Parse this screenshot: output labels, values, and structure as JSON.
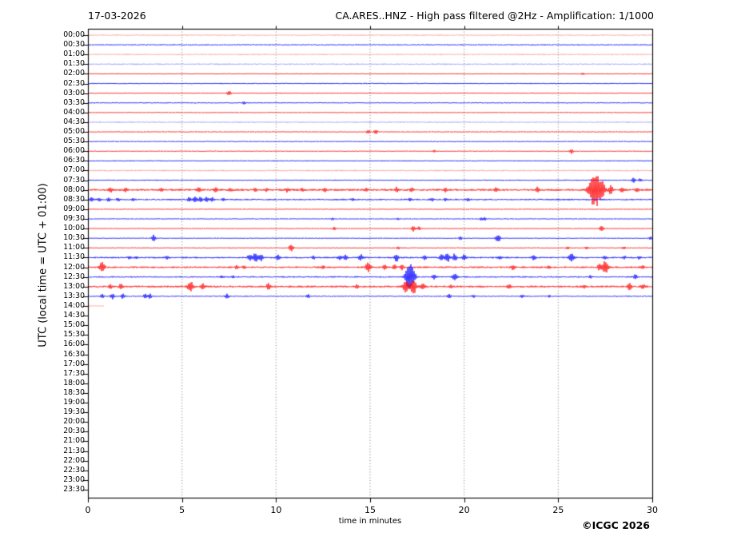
{
  "header": {
    "date": "17-03-2026",
    "title": "CA.ARES..HNZ - High pass filtered @2Hz - Amplification: 1/1000"
  },
  "axes": {
    "y_label": "UTC (local time = UTC + 01:00)",
    "x_label": "time in minutes",
    "x_tick_labels": [
      "0",
      "5",
      "10",
      "15",
      "20",
      "25",
      "30"
    ],
    "grid_minutes": [
      5,
      10,
      15,
      20,
      25
    ]
  },
  "footer": {
    "copyright": "©ICGC 2026"
  },
  "colors": {
    "red": "#ff0000",
    "blue": "#0000ff",
    "pale_red": "#ff9898",
    "pale_blue": "#9898ff",
    "grid": "#666666",
    "frame": "#000000"
  },
  "chart_data": {
    "type": "line",
    "subtype": "helicorder-seismogram",
    "title": "CA.ARES..HNZ - High pass filtered @2Hz - Amplification: 1/1000",
    "date": "17-03-2026",
    "xlabel": "time in minutes",
    "ylabel": "UTC (local time = UTC + 01:00)",
    "x_range_minutes": [
      0,
      30
    ],
    "x_ticks": [
      0,
      5,
      10,
      15,
      20,
      25,
      30
    ],
    "minutes_per_line": 30,
    "grid": "dotted vertical lines at 5,10,15,20,25 minutes",
    "legend": "red = lines starting on the hour, blue = lines starting on the half hour",
    "rows": [
      "00:00",
      "00:30",
      "01:00",
      "01:30",
      "02:00",
      "02:30",
      "03:00",
      "03:30",
      "04:00",
      "04:30",
      "05:00",
      "05:30",
      "06:00",
      "06:30",
      "07:00",
      "07:30",
      "08:00",
      "08:30",
      "09:00",
      "09:30",
      "10:00",
      "10:30",
      "11:00",
      "11:30",
      "12:00",
      "12:30",
      "13:00",
      "13:30",
      "14:00",
      "14:30",
      "15:00",
      "15:30",
      "16:00",
      "16:30",
      "17:00",
      "17:30",
      "18:00",
      "18:30",
      "19:00",
      "19:30",
      "20:00",
      "20:30",
      "21:00",
      "21:30",
      "22:00",
      "22:30",
      "23:00",
      "23:30"
    ],
    "last_data_row": "14:00",
    "empty_rows_after": "14:30-23:30",
    "traces": [
      {
        "row": "00:00",
        "color": "red",
        "shade": "pale",
        "noise": 0.9,
        "events": []
      },
      {
        "row": "00:30",
        "color": "blue",
        "shade": "normal",
        "noise": 0.8,
        "events": []
      },
      {
        "row": "01:00",
        "color": "red",
        "shade": "pale",
        "noise": 0.9,
        "events": []
      },
      {
        "row": "01:30",
        "color": "blue",
        "shade": "pale",
        "noise": 0.9,
        "events": []
      },
      {
        "row": "02:00",
        "color": "red",
        "shade": "normal",
        "noise": 0.65,
        "events": [
          [
            26.3,
            1.2
          ]
        ]
      },
      {
        "row": "02:30",
        "color": "blue",
        "shade": "normal",
        "noise": 0.7,
        "events": []
      },
      {
        "row": "03:00",
        "color": "red",
        "shade": "normal",
        "noise": 0.65,
        "events": [
          [
            7.5,
            3
          ]
        ]
      },
      {
        "row": "03:30",
        "color": "blue",
        "shade": "normal",
        "noise": 0.7,
        "events": [
          [
            8.3,
            1.5
          ]
        ]
      },
      {
        "row": "04:00",
        "color": "red",
        "shade": "normal",
        "noise": 0.65,
        "events": []
      },
      {
        "row": "04:30",
        "color": "blue",
        "shade": "pale",
        "noise": 0.9,
        "events": []
      },
      {
        "row": "05:00",
        "color": "red",
        "shade": "normal",
        "noise": 0.7,
        "events": [
          [
            14.9,
            2.5
          ],
          [
            15.3,
            2.5
          ]
        ]
      },
      {
        "row": "05:30",
        "color": "blue",
        "shade": "normal",
        "noise": 0.7,
        "events": []
      },
      {
        "row": "06:00",
        "color": "red",
        "shade": "normal",
        "noise": 0.65,
        "events": [
          [
            18.4,
            1.5
          ],
          [
            25.7,
            2.5
          ]
        ]
      },
      {
        "row": "06:30",
        "color": "blue",
        "shade": "normal",
        "noise": 0.7,
        "events": []
      },
      {
        "row": "07:00",
        "color": "red",
        "shade": "pale",
        "noise": 0.9,
        "events": []
      },
      {
        "row": "07:30",
        "color": "blue",
        "shade": "normal",
        "noise": 0.7,
        "events": [
          [
            29.0,
            3
          ],
          [
            29.35,
            1.8
          ]
        ]
      },
      {
        "row": "08:00",
        "color": "red",
        "shade": "normal",
        "noise": 1.3,
        "events": [
          [
            1.2,
            2.5
          ],
          [
            2.0,
            2
          ],
          [
            3.9,
            2
          ],
          [
            5.9,
            2.5
          ],
          [
            6.8,
            2.5
          ],
          [
            7.6,
            2
          ],
          [
            8.9,
            2
          ],
          [
            9.5,
            2
          ],
          [
            10.6,
            2.5
          ],
          [
            11.4,
            2
          ],
          [
            12.6,
            2
          ],
          [
            14.8,
            2
          ],
          [
            16.4,
            3
          ],
          [
            17.2,
            2.5
          ],
          [
            19.0,
            2.5
          ],
          [
            21.7,
            2.5
          ],
          [
            23.9,
            3
          ],
          [
            26.95,
            24
          ],
          [
            27.35,
            8
          ],
          [
            27.8,
            5
          ],
          [
            28.4,
            3
          ],
          [
            29.2,
            2
          ]
        ]
      },
      {
        "row": "08:30",
        "color": "blue",
        "shade": "normal",
        "noise": 1.0,
        "events": [
          [
            0.2,
            2.5
          ],
          [
            0.6,
            2
          ],
          [
            1.1,
            2
          ],
          [
            1.6,
            2
          ],
          [
            2.4,
            1.5
          ],
          [
            5.4,
            3
          ],
          [
            5.7,
            3.5
          ],
          [
            6.0,
            3
          ],
          [
            6.3,
            3
          ],
          [
            6.6,
            2.5
          ],
          [
            7.2,
            2
          ],
          [
            14.1,
            1.5
          ],
          [
            17.1,
            1.5
          ],
          [
            18.3,
            2
          ],
          [
            19.0,
            1.5
          ],
          [
            20.2,
            2
          ]
        ]
      },
      {
        "row": "09:00",
        "color": "red",
        "shade": "normal",
        "noise": 0.6,
        "events": []
      },
      {
        "row": "09:30",
        "color": "blue",
        "shade": "normal",
        "noise": 0.6,
        "events": [
          [
            13.0,
            1.3
          ],
          [
            16.5,
            1.3
          ],
          [
            20.9,
            2
          ],
          [
            21.1,
            2
          ]
        ]
      },
      {
        "row": "10:00",
        "color": "red",
        "shade": "normal",
        "noise": 0.6,
        "events": [
          [
            13.1,
            2
          ],
          [
            17.3,
            3.5
          ],
          [
            17.6,
            2.5
          ],
          [
            27.3,
            4
          ]
        ]
      },
      {
        "row": "10:30",
        "color": "blue",
        "shade": "normal",
        "noise": 0.6,
        "events": [
          [
            3.5,
            4
          ],
          [
            19.8,
            2
          ],
          [
            21.8,
            5
          ],
          [
            29.9,
            2
          ]
        ]
      },
      {
        "row": "11:00",
        "color": "red",
        "shade": "normal",
        "noise": 0.7,
        "events": [
          [
            10.8,
            5
          ],
          [
            16.5,
            1.5
          ],
          [
            25.5,
            1.5
          ],
          [
            26.5,
            1.5
          ],
          [
            28.5,
            1.5
          ]
        ]
      },
      {
        "row": "11:30",
        "color": "blue",
        "shade": "normal",
        "noise": 1.0,
        "events": [
          [
            2.2,
            1.5
          ],
          [
            2.6,
            1.5
          ],
          [
            4.2,
            1.8
          ],
          [
            8.6,
            4
          ],
          [
            8.9,
            6
          ],
          [
            9.2,
            4
          ],
          [
            10.1,
            3
          ],
          [
            12.0,
            2
          ],
          [
            13.4,
            3
          ],
          [
            13.7,
            3
          ],
          [
            14.5,
            4
          ],
          [
            16.4,
            5
          ],
          [
            17.9,
            3
          ],
          [
            18.8,
            4
          ],
          [
            19.1,
            6
          ],
          [
            19.5,
            5
          ],
          [
            20.0,
            4
          ],
          [
            21.9,
            2
          ],
          [
            23.7,
            3
          ],
          [
            25.7,
            6
          ],
          [
            27.5,
            2
          ],
          [
            28.5,
            2
          ],
          [
            29.3,
            2
          ]
        ]
      },
      {
        "row": "12:00",
        "color": "red",
        "shade": "normal",
        "noise": 1.1,
        "events": [
          [
            0.75,
            7
          ],
          [
            7.9,
            2
          ],
          [
            8.3,
            2
          ],
          [
            12.5,
            2
          ],
          [
            14.9,
            6
          ],
          [
            15.8,
            3
          ],
          [
            16.3,
            3
          ],
          [
            16.7,
            3
          ],
          [
            22.6,
            3
          ],
          [
            24.5,
            2
          ],
          [
            27.2,
            4
          ],
          [
            27.5,
            8
          ],
          [
            29.5,
            2
          ]
        ]
      },
      {
        "row": "12:30",
        "color": "blue",
        "shade": "normal",
        "noise": 0.9,
        "events": [
          [
            7.1,
            1.5
          ],
          [
            7.7,
            1.5
          ],
          [
            17.0,
            10
          ],
          [
            17.2,
            13
          ],
          [
            18.4,
            3
          ],
          [
            19.5,
            5
          ],
          [
            26.7,
            2
          ],
          [
            29.1,
            3
          ]
        ]
      },
      {
        "row": "13:00",
        "color": "red",
        "shade": "normal",
        "noise": 1.2,
        "events": [
          [
            1.2,
            3
          ],
          [
            1.75,
            3
          ],
          [
            5.45,
            7
          ],
          [
            6.1,
            4
          ],
          [
            9.6,
            4
          ],
          [
            14.3,
            2
          ],
          [
            16.9,
            8
          ],
          [
            17.3,
            9
          ],
          [
            17.8,
            4
          ],
          [
            19.3,
            2
          ],
          [
            22.4,
            3
          ],
          [
            26.4,
            2
          ],
          [
            28.8,
            4
          ],
          [
            29.5,
            3
          ]
        ]
      },
      {
        "row": "13:30",
        "color": "blue",
        "shade": "normal",
        "noise": 0.8,
        "events": [
          [
            0.75,
            2.5
          ],
          [
            1.3,
            3.5
          ],
          [
            1.85,
            3
          ],
          [
            3.05,
            3
          ],
          [
            3.3,
            3
          ],
          [
            7.4,
            3
          ],
          [
            11.7,
            2.5
          ],
          [
            19.2,
            2.5
          ],
          [
            20.5,
            1.5
          ],
          [
            23.1,
            2
          ],
          [
            24.5,
            1.5
          ]
        ]
      },
      {
        "row": "14:00",
        "color": "red",
        "shade": "pale",
        "noise": 0.35,
        "span": [
          0,
          0.85
        ],
        "events": []
      }
    ]
  }
}
